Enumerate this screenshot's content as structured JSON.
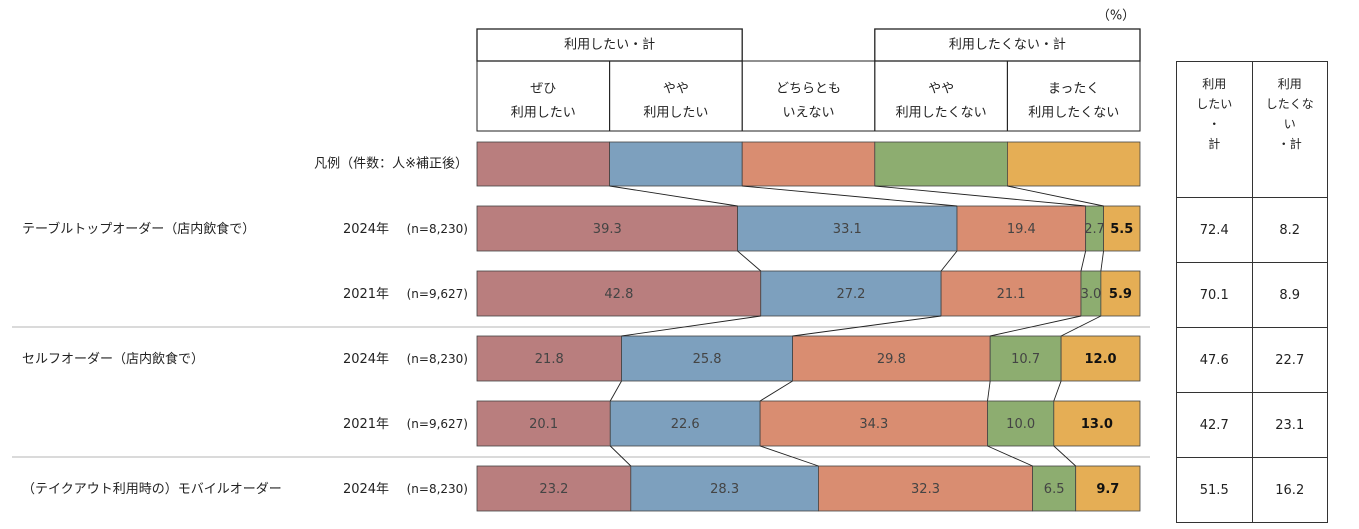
{
  "unit_label": "（%）",
  "group_headers": {
    "positive": "利用したい・計",
    "negative": "利用したくない・計"
  },
  "legend_label": "凡例（件数：人※補正後）",
  "categories": [
    {
      "line1": "ぜひ",
      "line2": "利用したい",
      "color": "#B97E7E"
    },
    {
      "line1": "やや",
      "line2": "利用したい",
      "color": "#7DA0BE"
    },
    {
      "line1": "どちらとも",
      "line2": "いえない",
      "color": "#D98D71"
    },
    {
      "line1": "やや",
      "line2": "利用したくない",
      "color": "#8DAD70"
    },
    {
      "line1": "まったく",
      "line2": "利用したくない",
      "color": "#E5AE55"
    }
  ],
  "side_headers": {
    "positive_lines": [
      "利用",
      "したい",
      "・",
      "計"
    ],
    "negative_lines": [
      "利用",
      "したくな",
      "い",
      "・計"
    ]
  },
  "rows": [
    {
      "group": "テーブルトップオーダー（店内飲食で）",
      "year": "2024年",
      "n": "(n=8,230)",
      "positive_total": "72.4",
      "negative_total": "8.2"
    },
    {
      "group": "",
      "year": "2021年",
      "n": "(n=9,627)",
      "positive_total": "70.1",
      "negative_total": "8.9"
    },
    {
      "group": "セルフオーダー（店内飲食で）",
      "year": "2024年",
      "n": "(n=8,230)",
      "positive_total": "47.6",
      "negative_total": "22.7"
    },
    {
      "group": "",
      "year": "2021年",
      "n": "(n=9,627)",
      "positive_total": "42.7",
      "negative_total": "23.1"
    },
    {
      "group": "（テイクアウト利用時の）モバイルオーダー",
      "year": "2024年",
      "n": "(n=8,230)",
      "positive_total": "51.5",
      "negative_total": "16.2"
    }
  ],
  "chart_data": {
    "type": "bar",
    "orientation": "horizontal",
    "stacked": true,
    "normalized_100": true,
    "categories": [
      "テーブルトップオーダー（店内飲食で） 2024年",
      "テーブルトップオーダー（店内飲食で） 2021年",
      "セルフオーダー（店内飲食で） 2024年",
      "セルフオーダー（店内飲食で） 2021年",
      "（テイクアウト利用時の）モバイルオーダー 2024年"
    ],
    "series": [
      {
        "name": "ぜひ利用したい",
        "values": [
          39.3,
          42.8,
          21.8,
          20.1,
          23.2
        ]
      },
      {
        "name": "やや利用したい",
        "values": [
          33.1,
          27.2,
          25.8,
          22.6,
          28.3
        ]
      },
      {
        "name": "どちらともいえない",
        "values": [
          19.4,
          21.1,
          29.8,
          34.3,
          32.3
        ]
      },
      {
        "name": "やや利用したくない",
        "values": [
          2.7,
          3.0,
          10.7,
          10.0,
          6.5
        ]
      },
      {
        "name": "まったく利用したくない",
        "values": [
          5.5,
          5.9,
          12.0,
          13.0,
          9.7
        ]
      }
    ],
    "xlim": [
      0,
      100
    ],
    "grid": false,
    "legend": "top"
  }
}
